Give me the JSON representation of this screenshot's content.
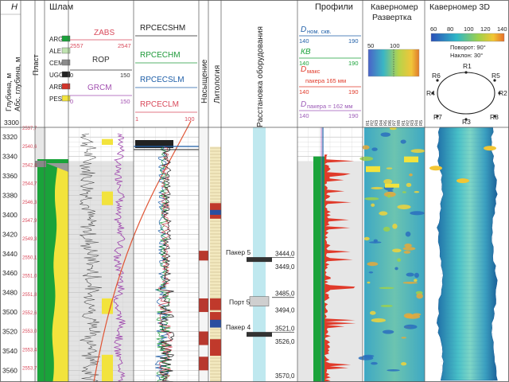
{
  "headers": {
    "h": "H",
    "depth": "Глубина, м",
    "abs_depth": "Абс. глубина, м",
    "plast": "Пласт",
    "shlam": "Шлам",
    "lithology": "Литология",
    "saturation": "Насыщение",
    "equipment": "Расстановка оборудования",
    "profiles": "Профили",
    "caliper_sweep_1": "Каверномер",
    "caliper_sweep_2": "Развертка",
    "caliper_3d": "Каверномер 3D"
  },
  "shlam_legend": [
    "ARG",
    "ALE",
    "CEM",
    "UGO",
    "ARB",
    "PES"
  ],
  "shlam_colors": {
    "ARG": "#1aa33a",
    "ALE": "#bfe3b0",
    "CEM": "#8c8c8c",
    "UGO": "#222222",
    "ARB": "#d4332a",
    "PES": "#f2e33c"
  },
  "track_rop": {
    "zabs": {
      "name": "ZABS",
      "min": "2557",
      "max": "2547",
      "color": "#d94a5b"
    },
    "rop": {
      "name": "ROP",
      "min": "0",
      "max": "150",
      "color": "#333333"
    },
    "grcm": {
      "name": "GRCM",
      "min": "0",
      "max": "150",
      "color": "#a24fb0"
    }
  },
  "track_res": {
    "rpcecshm": {
      "name": "RPCECSHM",
      "color": "#222222"
    },
    "rpcechm": {
      "name": "RPCECHM",
      "color": "#1f9a3a"
    },
    "rpcecslm": {
      "name": "RPCECSLM",
      "color": "#1f5fa8"
    },
    "rpceclm": {
      "name": "RPCECLM",
      "color": "#d94a5b"
    },
    "min": "1",
    "max": "100"
  },
  "track_profiles": {
    "dnom": {
      "label": "D",
      "sub": "ном. скв.",
      "min": "140",
      "max": "190",
      "color": "#1f5fa8"
    },
    "kv": {
      "label": "КВ",
      "min": "140",
      "max": "190",
      "color": "#1aa33a"
    },
    "dmax": {
      "label": "D",
      "sub": "макс",
      "note": "пакера 165 мм",
      "min": "140",
      "max": "190",
      "color": "#e03a2a"
    },
    "dpak": {
      "label": "D",
      "sub": "пакера = 162 мм",
      "min": "140",
      "max": "190",
      "color": "#9b59b6"
    }
  },
  "sweep_scale": {
    "min": "50",
    "max": "100"
  },
  "sweep_columns": [
    "R1",
    "R2",
    "R3",
    "R4",
    "R5",
    "R6",
    "R7",
    "R8",
    "R1",
    "R2",
    "R3",
    "R4",
    "R5"
  ],
  "caliper3d": {
    "scale": [
      "60",
      "80",
      "100",
      "120",
      "140"
    ],
    "rotation": "Поворот: 90°",
    "tilt": "Наклон: 30°",
    "radii": [
      "R1",
      "R5",
      "R2",
      "R8",
      "R3",
      "R7",
      "R4",
      "R6"
    ]
  },
  "depth_top": "3300",
  "depths": [
    "3320",
    "3340",
    "3360",
    "3380",
    "3400",
    "3420",
    "3440",
    "3460",
    "3480",
    "3500",
    "3520",
    "3540",
    "3560"
  ],
  "abs_depths": [
    "2537,7",
    "2540,6",
    "2542,8",
    "2544,7",
    "2546,3",
    "2547,9",
    "2549,3",
    "2550,1",
    "2551,0",
    "2551,8",
    "2552,6",
    "2553,0",
    "2553,4",
    "2553,7"
  ],
  "equipment": [
    {
      "name": "Пакер 5",
      "top": "3444,0",
      "bottom": "3449,0",
      "depth": 3446
    },
    {
      "name": "Порт 5",
      "top": "3485,0",
      "bottom": "3494,0",
      "depth": 3489
    },
    {
      "name": "Пакер 4",
      "top": "3521,0",
      "bottom": "3526,0",
      "depth": 3523
    }
  ],
  "equipment_bottom": "3570,0",
  "depth_range": [
    3300,
    3575
  ]
}
